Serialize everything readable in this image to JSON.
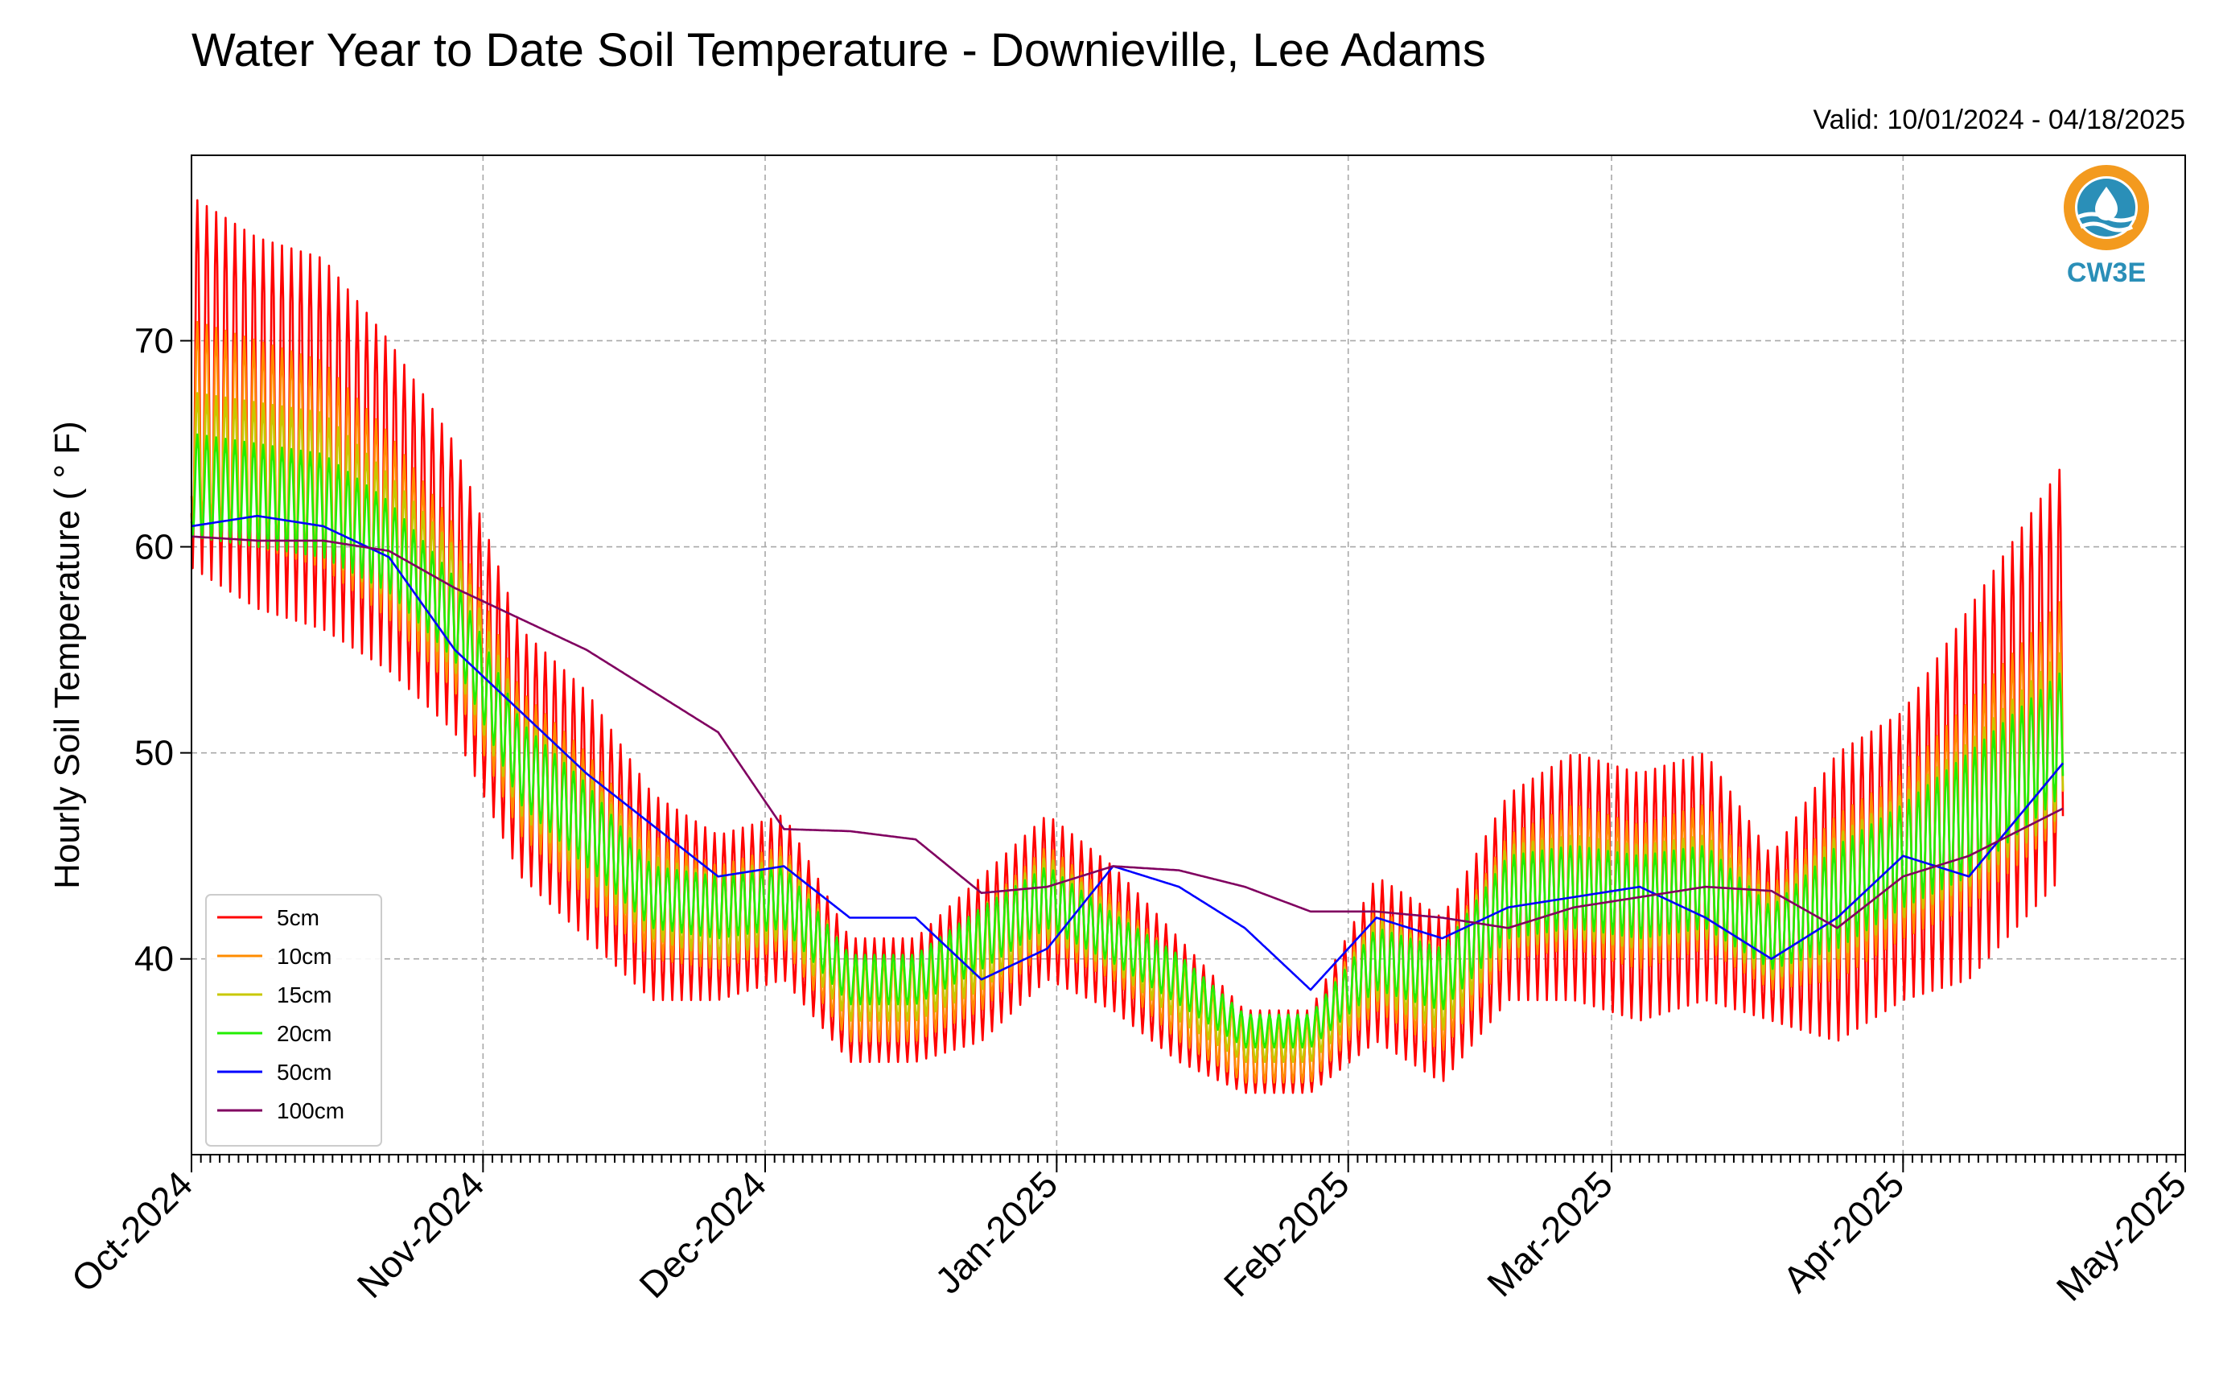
{
  "chart_data": {
    "type": "line",
    "title": "Water Year to Date Soil Temperature - Downieville, Lee Adams",
    "subtitle": "Valid: 10/01/2024 - 04/18/2025",
    "ylabel": "Hourly Soil Temperature ( ° F)",
    "xlabel": "",
    "ylim": [
      30.5,
      79
    ],
    "xlim": [
      "2024-10-01",
      "2025-05-01"
    ],
    "x_ticks": [
      "Oct-2024",
      "Nov-2024",
      "Dec-2024",
      "Jan-2025",
      "Feb-2025",
      "Mar-2025",
      "Apr-2025",
      "May-2025"
    ],
    "y_ticks": [
      40,
      50,
      60,
      70
    ],
    "grid": true,
    "legend_position": "lower-left",
    "logo": {
      "text": "CW3E",
      "color": "#2a8fb8",
      "accent": "#f39a1e"
    },
    "x_dates": [
      "2024-10-01",
      "2024-10-08",
      "2024-10-15",
      "2024-10-22",
      "2024-10-29",
      "2024-11-05",
      "2024-11-12",
      "2024-11-19",
      "2024-11-26",
      "2024-12-03",
      "2024-12-10",
      "2024-12-17",
      "2024-12-24",
      "2024-12-31",
      "2025-01-07",
      "2025-01-14",
      "2025-01-21",
      "2025-01-28",
      "2025-02-04",
      "2025-02-11",
      "2025-02-18",
      "2025-02-25",
      "2025-03-04",
      "2025-03-11",
      "2025-03-18",
      "2025-03-25",
      "2025-04-01",
      "2025-04-08",
      "2025-04-18"
    ],
    "series": [
      {
        "name": "5cm",
        "color": "#ff0000",
        "values": [
          68,
          66,
          65,
          62,
          58,
          50,
          47,
          43,
          42,
          43,
          38,
          38,
          40,
          43,
          41,
          38,
          35.5,
          35.5,
          40,
          38,
          43,
          44,
          43,
          44,
          41,
          43,
          45,
          48,
          54
        ],
        "amplitude": [
          9,
          9,
          9,
          8,
          7,
          6,
          6,
          5,
          4,
          4,
          3,
          3,
          4,
          4,
          3.5,
          3,
          2,
          2,
          4,
          4,
          5,
          6,
          6,
          6,
          4,
          7,
          7,
          9,
          10
        ]
      },
      {
        "name": "10cm",
        "color": "#ff8c00",
        "values": [
          66,
          65,
          64,
          61,
          57,
          49.5,
          46.5,
          43,
          42,
          43,
          38,
          38,
          40,
          43,
          41,
          38,
          35.5,
          35.5,
          40,
          38,
          43,
          44,
          43,
          44,
          41,
          43,
          45,
          47.5,
          52
        ],
        "amplitude": [
          5,
          5,
          5,
          4.5,
          4,
          3.5,
          3.5,
          3,
          2.5,
          2.5,
          2,
          2,
          2.5,
          2.5,
          2,
          2,
          1.5,
          1.5,
          2.5,
          2.5,
          3,
          3.5,
          3.5,
          3.5,
          2.5,
          4,
          4,
          5,
          5.5
        ]
      },
      {
        "name": "15cm",
        "color": "#c8c800",
        "values": [
          64,
          63.5,
          63,
          60.5,
          57,
          49.5,
          46.5,
          43,
          42,
          43,
          38.5,
          38.5,
          40.5,
          43,
          41,
          38.5,
          36,
          36,
          40,
          38.5,
          43,
          43.5,
          43,
          43.5,
          41,
          43,
          45,
          47,
          51
        ],
        "amplitude": [
          3.5,
          3.5,
          3.5,
          3,
          3,
          2.5,
          2.5,
          2,
          2,
          2,
          1.5,
          1.5,
          2,
          2,
          1.5,
          1.5,
          1,
          1,
          2,
          2,
          2.5,
          2.5,
          2.5,
          2.5,
          2,
          3,
          3,
          3.5,
          4
        ]
      },
      {
        "name": "20cm",
        "color": "#22ee00",
        "values": [
          63,
          62.5,
          62,
          60,
          56.5,
          49.5,
          46.5,
          43,
          42.5,
          43,
          39,
          39,
          41,
          43,
          41,
          39,
          36.5,
          36.5,
          40,
          39,
          43,
          43.5,
          43,
          43.5,
          41,
          43,
          45,
          47,
          51
        ],
        "amplitude": [
          2.5,
          2.5,
          2.5,
          2.2,
          2,
          2,
          2,
          1.5,
          1.5,
          1.5,
          1.2,
          1.2,
          1.5,
          1.5,
          1.2,
          1.2,
          0.8,
          0.8,
          1.5,
          1.5,
          2,
          2,
          2,
          2,
          1.5,
          2.5,
          2.5,
          3,
          3
        ]
      },
      {
        "name": "50cm",
        "color": "#0000ff",
        "values": [
          61,
          61.5,
          61,
          59.5,
          55,
          52,
          49,
          46.5,
          44,
          44.5,
          42,
          42,
          39,
          40.5,
          44.5,
          43.5,
          41.5,
          38.5,
          42,
          41,
          42.5,
          43,
          43.5,
          42,
          40,
          42,
          45,
          44,
          49.5
        ]
      },
      {
        "name": "100cm",
        "color": "#800060",
        "values": [
          60.5,
          60.3,
          60.3,
          59.8,
          58,
          56.5,
          55,
          53,
          51,
          46.3,
          46.2,
          45.8,
          43.2,
          43.5,
          44.5,
          44.3,
          43.5,
          42.3,
          42.3,
          42,
          41.5,
          42.5,
          43,
          43.5,
          43.3,
          41.5,
          44,
          45,
          47.3
        ]
      }
    ]
  }
}
